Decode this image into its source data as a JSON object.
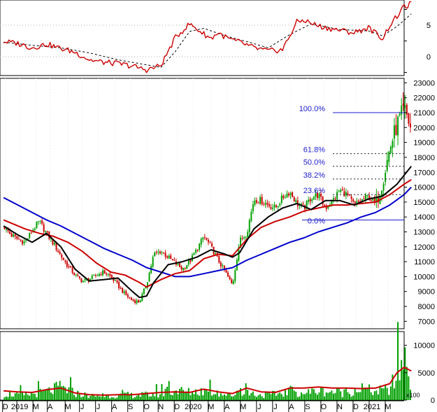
{
  "chart_data": [
    {
      "panel": "indicator",
      "type": "line",
      "y_ticks": [
        "5",
        "0"
      ],
      "y_values": [
        5,
        0
      ],
      "ylim": [
        -3,
        9
      ],
      "colors": {
        "line": "#cc0000",
        "signal": "#000000"
      },
      "series": [
        {
          "role": "main",
          "x": [
            0,
            4,
            8,
            12,
            16,
            20,
            24,
            28,
            32,
            36,
            40,
            44,
            48,
            52,
            56,
            58,
            60,
            62,
            64,
            66,
            70,
            74,
            78,
            82,
            84,
            86,
            88,
            90,
            94,
            98,
            102,
            106,
            108,
            110,
            112,
            114
          ],
          "values": [
            2.4,
            2.1,
            1.4,
            2.0,
            1.3,
            0.7,
            -0.5,
            -0.9,
            -1.1,
            -1.5,
            -2.1,
            -1.4,
            3.0,
            5.2,
            3.6,
            2.9,
            3.8,
            3.1,
            2.6,
            2.3,
            1.4,
            0.9,
            1.1,
            5.5,
            5.8,
            5.3,
            4.9,
            4.6,
            4.2,
            3.8,
            4.6,
            2.9,
            5.0,
            6.4,
            7.9,
            8.4
          ]
        },
        {
          "role": "signal",
          "x": [
            0,
            8,
            16,
            24,
            32,
            40,
            44,
            48,
            52,
            56,
            62,
            68,
            74,
            80,
            86,
            94,
            102,
            106,
            110,
            114
          ],
          "values": [
            2.3,
            1.8,
            1.4,
            0.6,
            -0.5,
            -1.3,
            -1.7,
            0.8,
            4.0,
            4.5,
            3.3,
            2.4,
            1.4,
            3.5,
            5.2,
            4.3,
            4.1,
            3.3,
            4.8,
            6.8
          ]
        }
      ]
    },
    {
      "panel": "price",
      "type": "candlestick",
      "y_ticks": [
        "23000",
        "22000",
        "21000",
        "20000",
        "19000",
        "18000",
        "17000",
        "16000",
        "15000",
        "14000",
        "13000",
        "12000",
        "11000",
        "10000",
        "9000",
        "8000",
        "7000"
      ],
      "ylim": [
        6500,
        23300
      ],
      "colors": {
        "up": "#00a000",
        "down": "#cc0000",
        "ma_short": "#000000",
        "ma_mid": "#cc0000",
        "ma_long": "#0000cc",
        "fib": "#1c1ccc"
      },
      "fibonacci": [
        {
          "label": "100.0%",
          "value": 21000,
          "style": "solid"
        },
        {
          "label": "61.8%",
          "value": 18250,
          "style": "dotted"
        },
        {
          "label": "50.0%",
          "value": 17400,
          "style": "dotted"
        },
        {
          "label": "38.2%",
          "value": 16550,
          "style": "dotted"
        },
        {
          "label": "23.6%",
          "value": 15500,
          "style": "dotted"
        },
        {
          "label": "0.0%",
          "value": 13800,
          "style": "solid"
        }
      ],
      "close_path": {
        "x": [
          0,
          2,
          4,
          6,
          8,
          10,
          12,
          14,
          16,
          18,
          20,
          22,
          24,
          26,
          28,
          30,
          32,
          34,
          36,
          38,
          40,
          42,
          44,
          46,
          48,
          50,
          52,
          54,
          56,
          58,
          60,
          62,
          64,
          66,
          68,
          70,
          72,
          74,
          76,
          78,
          80,
          82,
          84,
          86,
          88,
          90,
          92,
          94,
          96,
          98,
          100,
          102,
          104,
          106,
          108,
          110,
          112,
          113,
          114
        ],
        "values": [
          13400,
          12800,
          12500,
          12300,
          13100,
          13700,
          12900,
          12200,
          11400,
          10700,
          10100,
          9700,
          9800,
          10100,
          10300,
          10000,
          9400,
          8800,
          8400,
          8300,
          9500,
          11500,
          11700,
          11300,
          10900,
          10500,
          11000,
          11800,
          12700,
          12000,
          11100,
          10300,
          9400,
          12400,
          12900,
          15200,
          15100,
          14800,
          14600,
          15300,
          15700,
          14900,
          14600,
          15300,
          15500,
          14600,
          15100,
          15800,
          15500,
          14800,
          15100,
          15400,
          14800,
          16400,
          18600,
          20200,
          21200,
          20600,
          19800
        ]
      },
      "ma_short": {
        "x": [
          0,
          4,
          8,
          12,
          16,
          20,
          24,
          28,
          32,
          36,
          38,
          40,
          42,
          46,
          50,
          54,
          58,
          62,
          64,
          66,
          70,
          74,
          78,
          82,
          86,
          90,
          94,
          98,
          102,
          106,
          110,
          114
        ],
        "values": [
          13400,
          12800,
          12300,
          12900,
          12000,
          10500,
          9700,
          9800,
          9900,
          9000,
          8600,
          8700,
          9600,
          10800,
          11000,
          11300,
          11800,
          11500,
          11300,
          11600,
          13200,
          14000,
          14600,
          14900,
          14500,
          15100,
          15100,
          14800,
          15200,
          15400,
          16200,
          17400
        ]
      },
      "ma_mid": {
        "x": [
          0,
          6,
          10,
          14,
          18,
          22,
          26,
          30,
          34,
          38,
          40,
          44,
          48,
          52,
          56,
          60,
          64,
          68,
          72,
          76,
          80,
          84,
          88,
          92,
          96,
          100,
          104,
          108,
          112,
          114
        ],
        "values": [
          13800,
          13200,
          12900,
          12700,
          12300,
          11700,
          10900,
          10300,
          10100,
          9600,
          9300,
          9800,
          10200,
          10400,
          11200,
          11500,
          11400,
          12500,
          13300,
          13700,
          14000,
          14400,
          14600,
          14800,
          14800,
          14900,
          15000,
          15500,
          16200,
          16500
        ]
      },
      "ma_long": {
        "x": [
          0,
          4,
          8,
          12,
          16,
          20,
          24,
          28,
          32,
          36,
          40,
          44,
          48,
          52,
          56,
          60,
          64,
          68,
          72,
          76,
          80,
          84,
          88,
          92,
          96,
          100,
          104,
          108,
          112,
          114
        ],
        "values": [
          15300,
          14800,
          14300,
          13800,
          13400,
          12900,
          12400,
          11900,
          11500,
          11100,
          10600,
          10300,
          10000,
          10000,
          10200,
          10400,
          10600,
          11100,
          11500,
          11900,
          12300,
          12600,
          13000,
          13300,
          13600,
          14000,
          14300,
          14800,
          15500,
          16000
        ]
      }
    },
    {
      "panel": "volume",
      "type": "bar",
      "y_ticks": [
        "10000",
        "5000",
        "0"
      ],
      "y_values": [
        10000,
        5000,
        0
      ],
      "ylim": [
        0,
        12500
      ],
      "unit_label": "x100",
      "colors": {
        "bars": "#00a000",
        "ma": "#cc0000"
      },
      "volume_level": {
        "x": [
          0,
          6,
          12,
          16,
          20,
          24,
          28,
          32,
          36,
          40,
          44,
          48,
          52,
          56,
          60,
          64,
          66,
          68,
          72,
          76,
          80,
          84,
          88,
          92,
          96,
          100,
          104,
          108,
          110,
          112,
          114
        ],
        "values": [
          1300,
          1000,
          1700,
          2600,
          1400,
          900,
          800,
          900,
          1000,
          1100,
          1200,
          2000,
          1600,
          1900,
          1400,
          900,
          2300,
          1600,
          1000,
          1200,
          1800,
          1400,
          1900,
          1700,
          1500,
          2400,
          1700,
          2200,
          5000,
          9000,
          4000
        ]
      },
      "volume_ma": {
        "x": [
          0,
          4,
          8,
          12,
          16,
          20,
          24,
          28,
          32,
          36,
          40,
          44,
          48,
          52,
          56,
          60,
          64,
          68,
          72,
          76,
          80,
          84,
          88,
          92,
          96,
          100,
          104,
          108,
          110,
          112,
          114
        ],
        "values": [
          1700,
          1500,
          1400,
          1900,
          2200,
          1300,
          1000,
          900,
          1000,
          1000,
          1200,
          1400,
          1500,
          1400,
          2000,
          1500,
          1200,
          2200,
          1500,
          1400,
          2200,
          2200,
          2400,
          2200,
          2200,
          2100,
          2200,
          3000,
          5000,
          6000,
          5300
        ]
      }
    }
  ],
  "x_axis": {
    "ticks": [
      "D",
      "2019",
      "M",
      "A",
      "M",
      "J",
      "J",
      "A",
      "S",
      "O",
      "N",
      "D",
      "2020",
      "M",
      "A",
      "M",
      "J",
      "J",
      "A",
      "S",
      "O",
      "N",
      "D",
      "2021",
      "M"
    ],
    "positions": [
      0.5,
      4.5,
      9,
      13,
      18,
      22,
      26.5,
      31,
      35.5,
      40,
      44,
      48.5,
      53,
      58,
      62.5,
      67,
      71.5,
      76,
      80.5,
      85,
      89.5,
      94,
      98.5,
      103,
      107.5
    ],
    "range": [
      -1,
      112
    ]
  }
}
